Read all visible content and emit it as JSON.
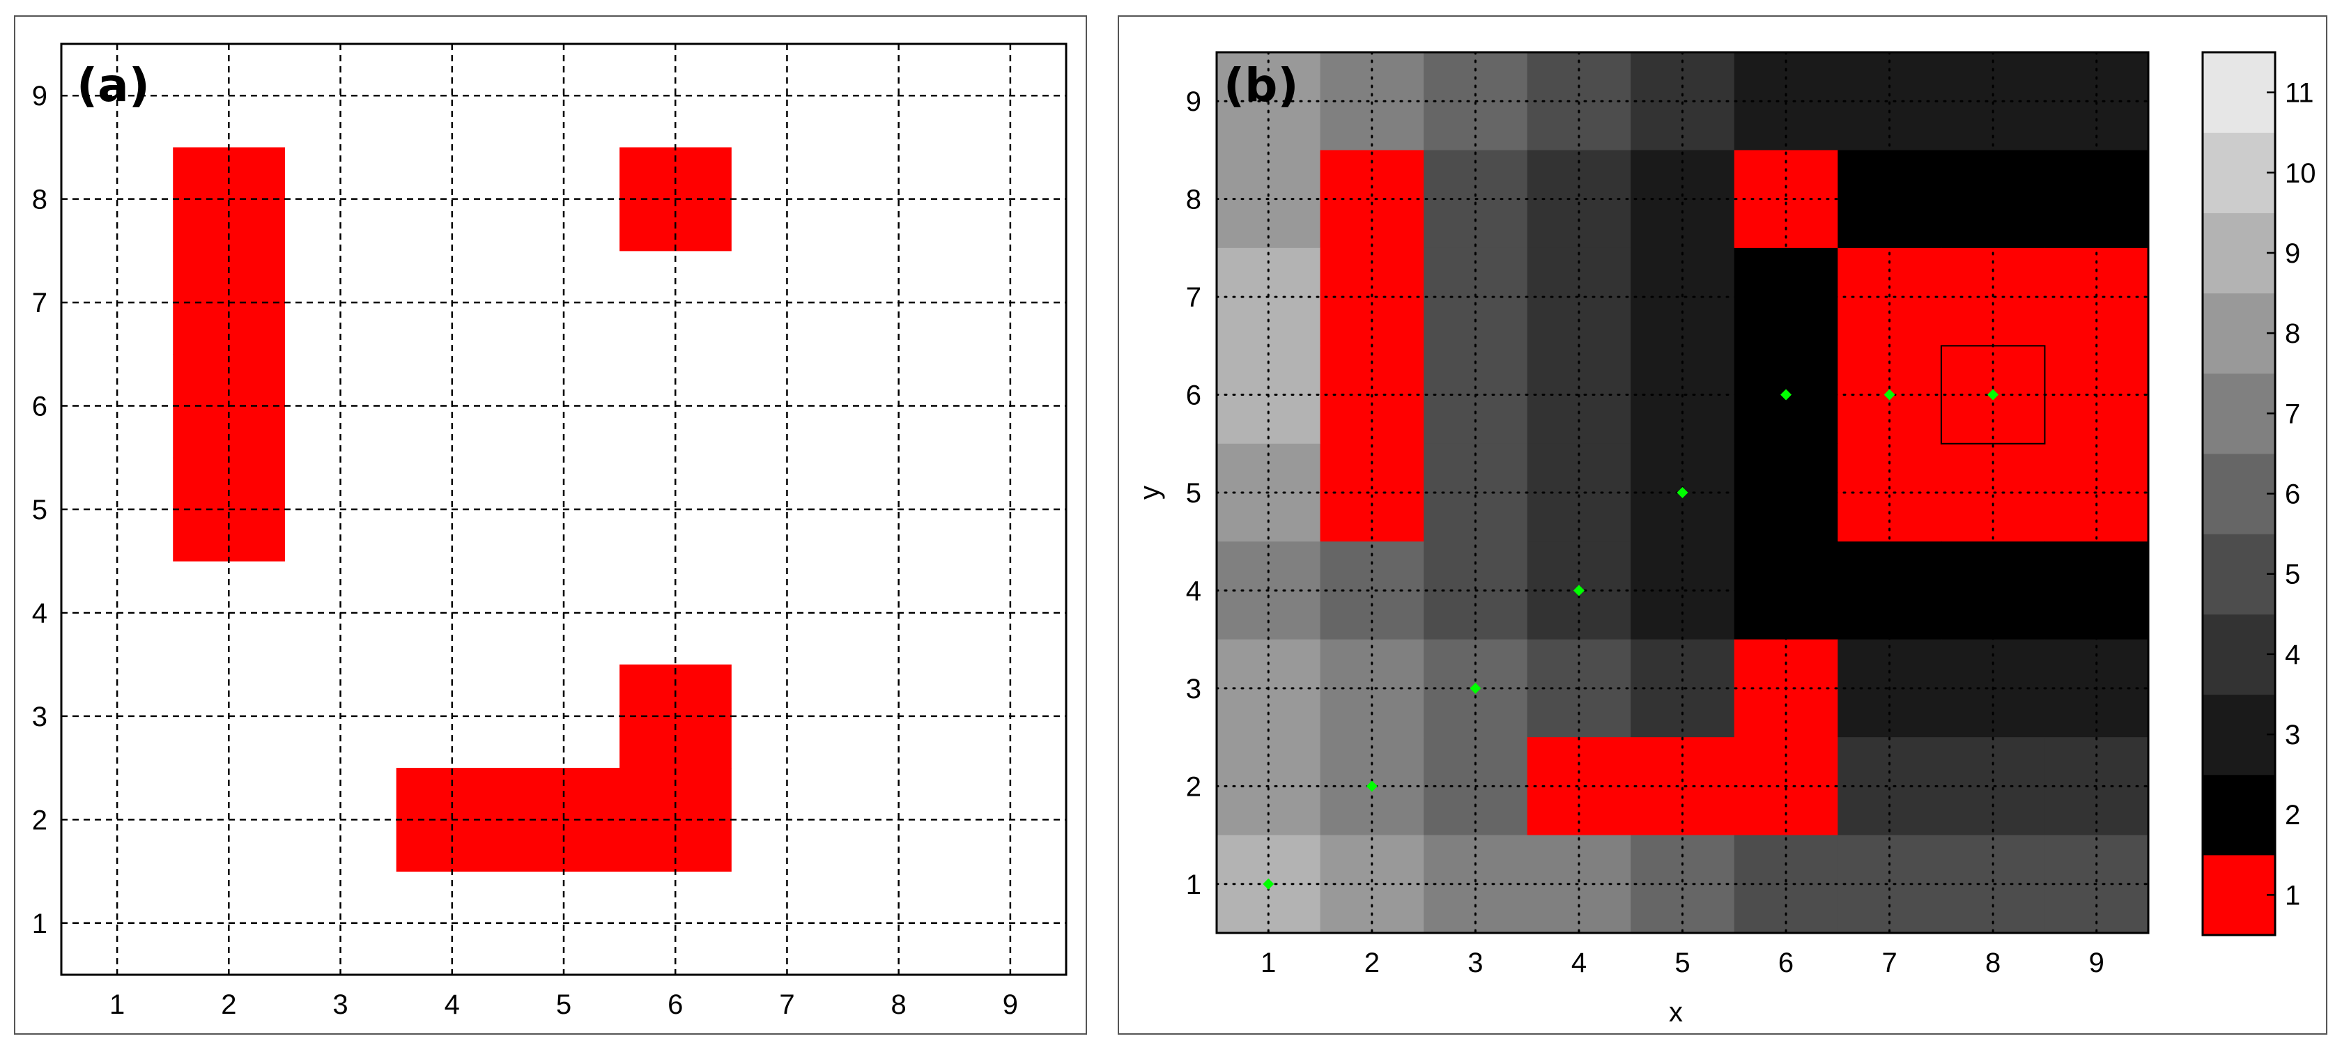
{
  "chart_data": [
    {
      "type": "heatmap",
      "panel_label": "(a)",
      "xlabel": "",
      "ylabel": "",
      "xlim": [
        0.5,
        9.5
      ],
      "ylim": [
        0.5,
        9.5
      ],
      "x_ticks": [
        "1",
        "2",
        "3",
        "4",
        "5",
        "6",
        "7",
        "8",
        "9"
      ],
      "y_ticks": [
        "1",
        "2",
        "3",
        "4",
        "5",
        "6",
        "7",
        "8",
        "9"
      ],
      "grid": "dashed",
      "background_color": "#ffffff",
      "obstacle_color": "#ff0000",
      "obstacles": [
        [
          2,
          5
        ],
        [
          2,
          6
        ],
        [
          2,
          7
        ],
        [
          2,
          8
        ],
        [
          6,
          8
        ],
        [
          4,
          2
        ],
        [
          5,
          2
        ],
        [
          6,
          2
        ],
        [
          6,
          3
        ]
      ]
    },
    {
      "type": "heatmap",
      "panel_label": "(b)",
      "xlabel": "x",
      "ylabel": "y",
      "xlim": [
        0.5,
        9.5
      ],
      "ylim": [
        0.5,
        9.5
      ],
      "x_ticks": [
        "1",
        "2",
        "3",
        "4",
        "5",
        "6",
        "7",
        "8",
        "9"
      ],
      "y_ticks": [
        "1",
        "2",
        "3",
        "4",
        "5",
        "6",
        "7",
        "8",
        "9"
      ],
      "grid": "dotted",
      "values_rows_top_to_bottom": [
        [
          8,
          7,
          6,
          5,
          4,
          3,
          3,
          3,
          3
        ],
        [
          8,
          1,
          5,
          4,
          3,
          1,
          2,
          2,
          2
        ],
        [
          9,
          1,
          5,
          4,
          3,
          2,
          1,
          1,
          1
        ],
        [
          9,
          1,
          5,
          4,
          3,
          2,
          1,
          1,
          1
        ],
        [
          8,
          1,
          5,
          4,
          3,
          2,
          1,
          1,
          1
        ],
        [
          7,
          6,
          5,
          4,
          3,
          2,
          2,
          2,
          2
        ],
        [
          8,
          7,
          6,
          5,
          4,
          1,
          3,
          3,
          3
        ],
        [
          8,
          7,
          6,
          1,
          1,
          1,
          4,
          4,
          4
        ],
        [
          9,
          8,
          7,
          7,
          6,
          5,
          5,
          5,
          5
        ]
      ],
      "obstacle_overlay": [
        [
          8,
          6
        ]
      ],
      "path": [
        [
          1,
          1
        ],
        [
          2,
          2
        ],
        [
          3,
          3
        ],
        [
          4,
          4
        ],
        [
          5,
          5
        ],
        [
          6,
          6
        ],
        [
          7,
          6
        ],
        [
          8,
          6
        ]
      ],
      "path_color": "#00ff00",
      "colorbar": {
        "ticks": [
          "1",
          "2",
          "3",
          "4",
          "5",
          "6",
          "7",
          "8",
          "9",
          "10",
          "11"
        ],
        "range": [
          0.5,
          11.5
        ],
        "colors": [
          "#ff0000",
          "#000000",
          "#1a1a1a",
          "#333333",
          "#4d4d4d",
          "#666666",
          "#808080",
          "#999999",
          "#b3b3b3",
          "#cccccc",
          "#e6e6e6"
        ]
      }
    }
  ]
}
